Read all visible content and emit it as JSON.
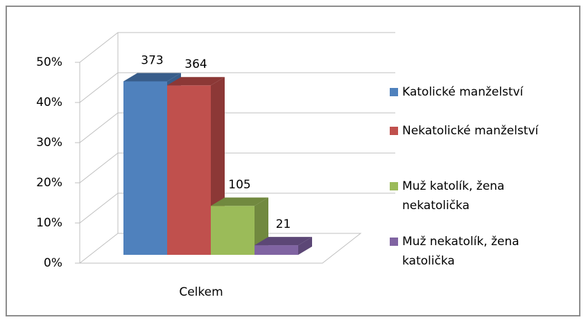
{
  "chart_data": {
    "type": "bar3d",
    "categories": [
      "Celkem"
    ],
    "series": [
      {
        "name": "Katolické manželství",
        "color": "#4f81bd",
        "side": "#385d8a",
        "values": [
          43.2
        ],
        "counts": [
          373
        ]
      },
      {
        "name": "Nekatolické manželství",
        "color": "#c0504d",
        "side": "#8c3836",
        "values": [
          42.2
        ],
        "counts": [
          364
        ]
      },
      {
        "name": "Muž katolík, žena nekatolička",
        "color": "#9bbb59",
        "side": "#71893f",
        "values": [
          12.2
        ],
        "counts": [
          105
        ]
      },
      {
        "name": "Muž nekatolík, žena katolička",
        "color": "#8064a2",
        "side": "#5c4776",
        "values": [
          2.4
        ],
        "counts": [
          21
        ]
      }
    ],
    "ylim": [
      0,
      50
    ],
    "yticks": [
      {
        "value": 0,
        "label": "0%"
      },
      {
        "value": 10,
        "label": "10%"
      },
      {
        "value": 20,
        "label": "20%"
      },
      {
        "value": 30,
        "label": "30%"
      },
      {
        "value": 40,
        "label": "40%"
      },
      {
        "value": 50,
        "label": "50%"
      }
    ],
    "grid": true,
    "legend": "right"
  }
}
